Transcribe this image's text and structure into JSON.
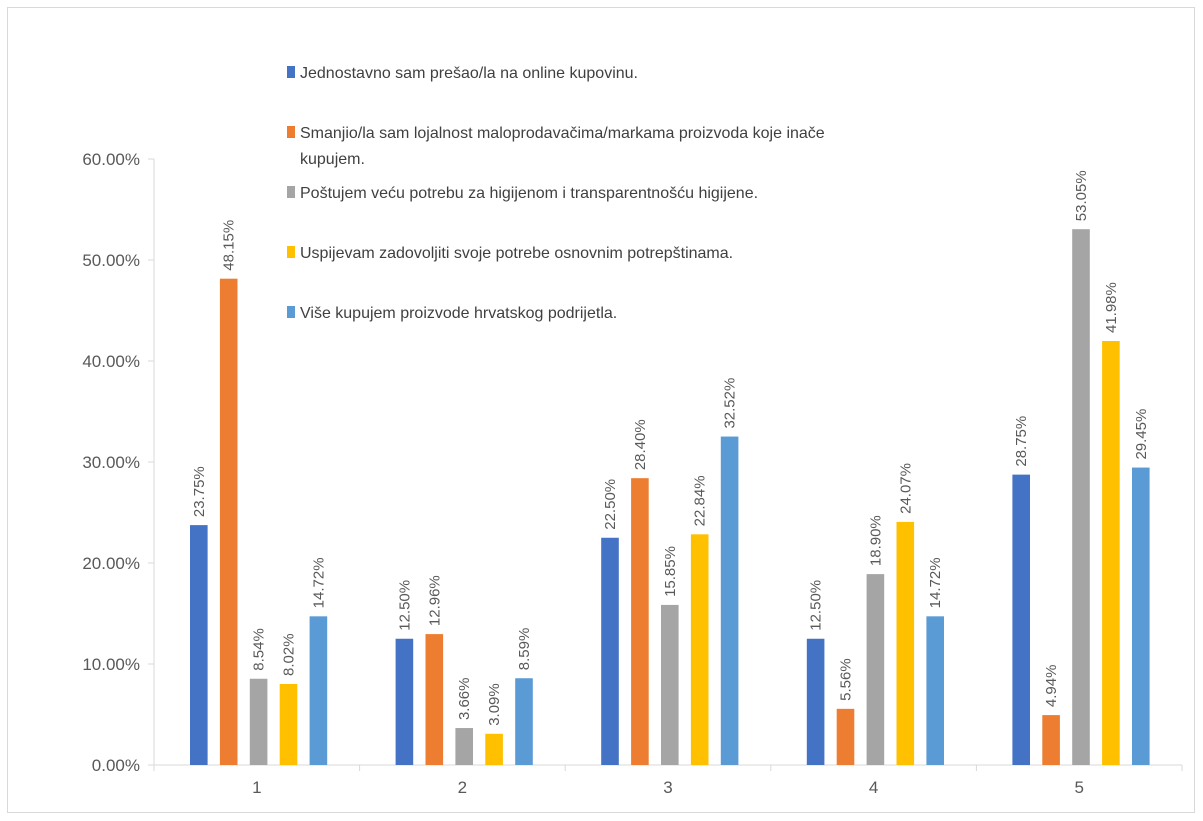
{
  "chart_data": {
    "type": "bar",
    "title": "",
    "xlabel": "",
    "ylabel": "",
    "categories": [
      "1",
      "2",
      "3",
      "4",
      "5"
    ],
    "ylim": [
      0,
      60
    ],
    "y_ticks": [
      "0.00%",
      "10.00%",
      "20.00%",
      "30.00%",
      "40.00%",
      "50.00%",
      "60.00%"
    ],
    "grid": false,
    "legend_position": "top",
    "series": [
      {
        "name": "Jednostavno sam prešao/la na online kupovinu.",
        "color": "#4472C4",
        "values": [
          23.75,
          12.5,
          22.5,
          12.5,
          28.75
        ],
        "labels": [
          "23.75%",
          "12.50%",
          "22.50%",
          "12.50%",
          "28.75%"
        ]
      },
      {
        "name": "Smanjio/la sam lojalnost maloprodavačima/markama proizvoda koje inače kupujem.",
        "name_lines": [
          "Smanjio/la sam lojalnost maloprodavačima/markama proizvoda koje inače",
          "kupujem."
        ],
        "color": "#ED7D31",
        "values": [
          48.15,
          12.96,
          28.4,
          5.56,
          4.94
        ],
        "labels": [
          "48.15%",
          "12.96%",
          "28.40%",
          "5.56%",
          "4.94%"
        ]
      },
      {
        "name": "Poštujem veću potrebu za higijenom i transparentnošću higijene.",
        "color": "#A5A5A5",
        "values": [
          8.54,
          3.66,
          15.85,
          18.9,
          53.05
        ],
        "labels": [
          "8.54%",
          "3.66%",
          "15.85%",
          "18.90%",
          "53.05%"
        ]
      },
      {
        "name": "Uspijevam zadovoljiti svoje potrebe osnovnim potrepštinama.",
        "color": "#FFC000",
        "values": [
          8.02,
          3.09,
          22.84,
          24.07,
          41.98
        ],
        "labels": [
          "8.02%",
          "3.09%",
          "22.84%",
          "24.07%",
          "41.98%"
        ]
      },
      {
        "name": "Više kupujem proizvode hrvatskog podrijetla.",
        "color": "#5B9BD5",
        "values": [
          14.72,
          8.59,
          32.52,
          14.72,
          29.45
        ],
        "labels": [
          "14.72%",
          "8.59%",
          "32.52%",
          "14.72%",
          "29.45%"
        ]
      }
    ]
  }
}
